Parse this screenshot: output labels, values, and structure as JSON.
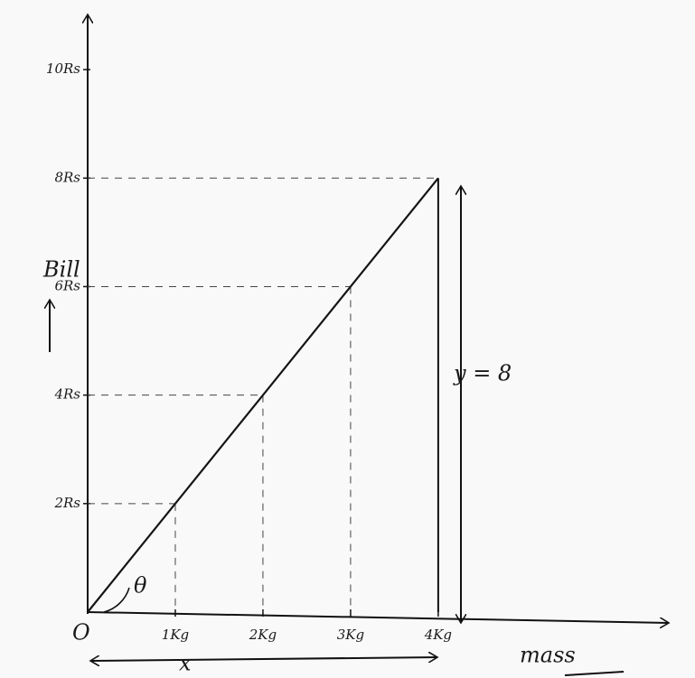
{
  "chart_data": {
    "type": "line",
    "x": [
      0,
      1,
      2,
      3,
      4
    ],
    "values": [
      0,
      2,
      4,
      6,
      8
    ],
    "color": "#151515",
    "xlim": [
      0,
      6.6
    ],
    "ylim": [
      0,
      11
    ],
    "xticks": [
      {
        "value": 1,
        "label": "1Kg"
      },
      {
        "value": 2,
        "label": "2Kg"
      },
      {
        "value": 3,
        "label": "3Kg"
      },
      {
        "value": 4,
        "label": "4Kg"
      }
    ],
    "yticks": [
      {
        "value": 2,
        "label": "2Rs"
      },
      {
        "value": 4,
        "label": "4Rs"
      },
      {
        "value": 6,
        "label": "6Rs"
      },
      {
        "value": 8,
        "label": "8Rs"
      },
      {
        "value": 10,
        "label": "10Rs"
      }
    ],
    "y_label": "Bill",
    "x_label": "mass",
    "annotations": {
      "origin": "O",
      "angle": "θ",
      "rise": "y = 8",
      "run": "x"
    }
  }
}
